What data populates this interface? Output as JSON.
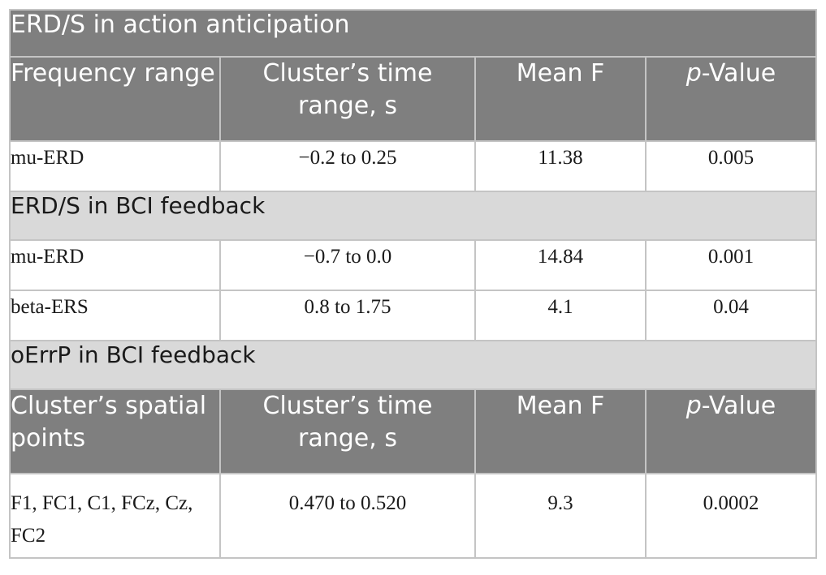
{
  "table": {
    "section1_title": "ERD/S in action anticipation",
    "header1": {
      "col1": "Frequency range",
      "col2": "Cluster’s time range, s",
      "col3": "Mean F",
      "col4_italic": "p",
      "col4_rest": "-Value"
    },
    "row_action_mu": {
      "label": "mu-ERD",
      "time": "−0.2 to 0.25",
      "mean_f": "11.38",
      "p": "0.005"
    },
    "section2_title": "ERD/S in BCI feedback",
    "row_bci_mu": {
      "label": "mu-ERD",
      "time": "−0.7 to 0.0",
      "mean_f": "14.84",
      "p": "0.001"
    },
    "row_bci_beta": {
      "label": "beta-ERS",
      "time": "0.8 to 1.75",
      "mean_f": "4.1",
      "p": "0.04"
    },
    "section3_title": "oErrP in BCI feedback",
    "header2": {
      "col1": "Cluster’s spatial points",
      "col2": "Cluster’s time range, s",
      "col3": "Mean F",
      "col4_italic": "p",
      "col4_rest": "-Value"
    },
    "row_oerrp": {
      "label": "F1, FC1, C1, FCz, Cz, FC2",
      "time": "0.470 to 0.520",
      "mean_f": "9.3",
      "p": "0.0002"
    }
  }
}
